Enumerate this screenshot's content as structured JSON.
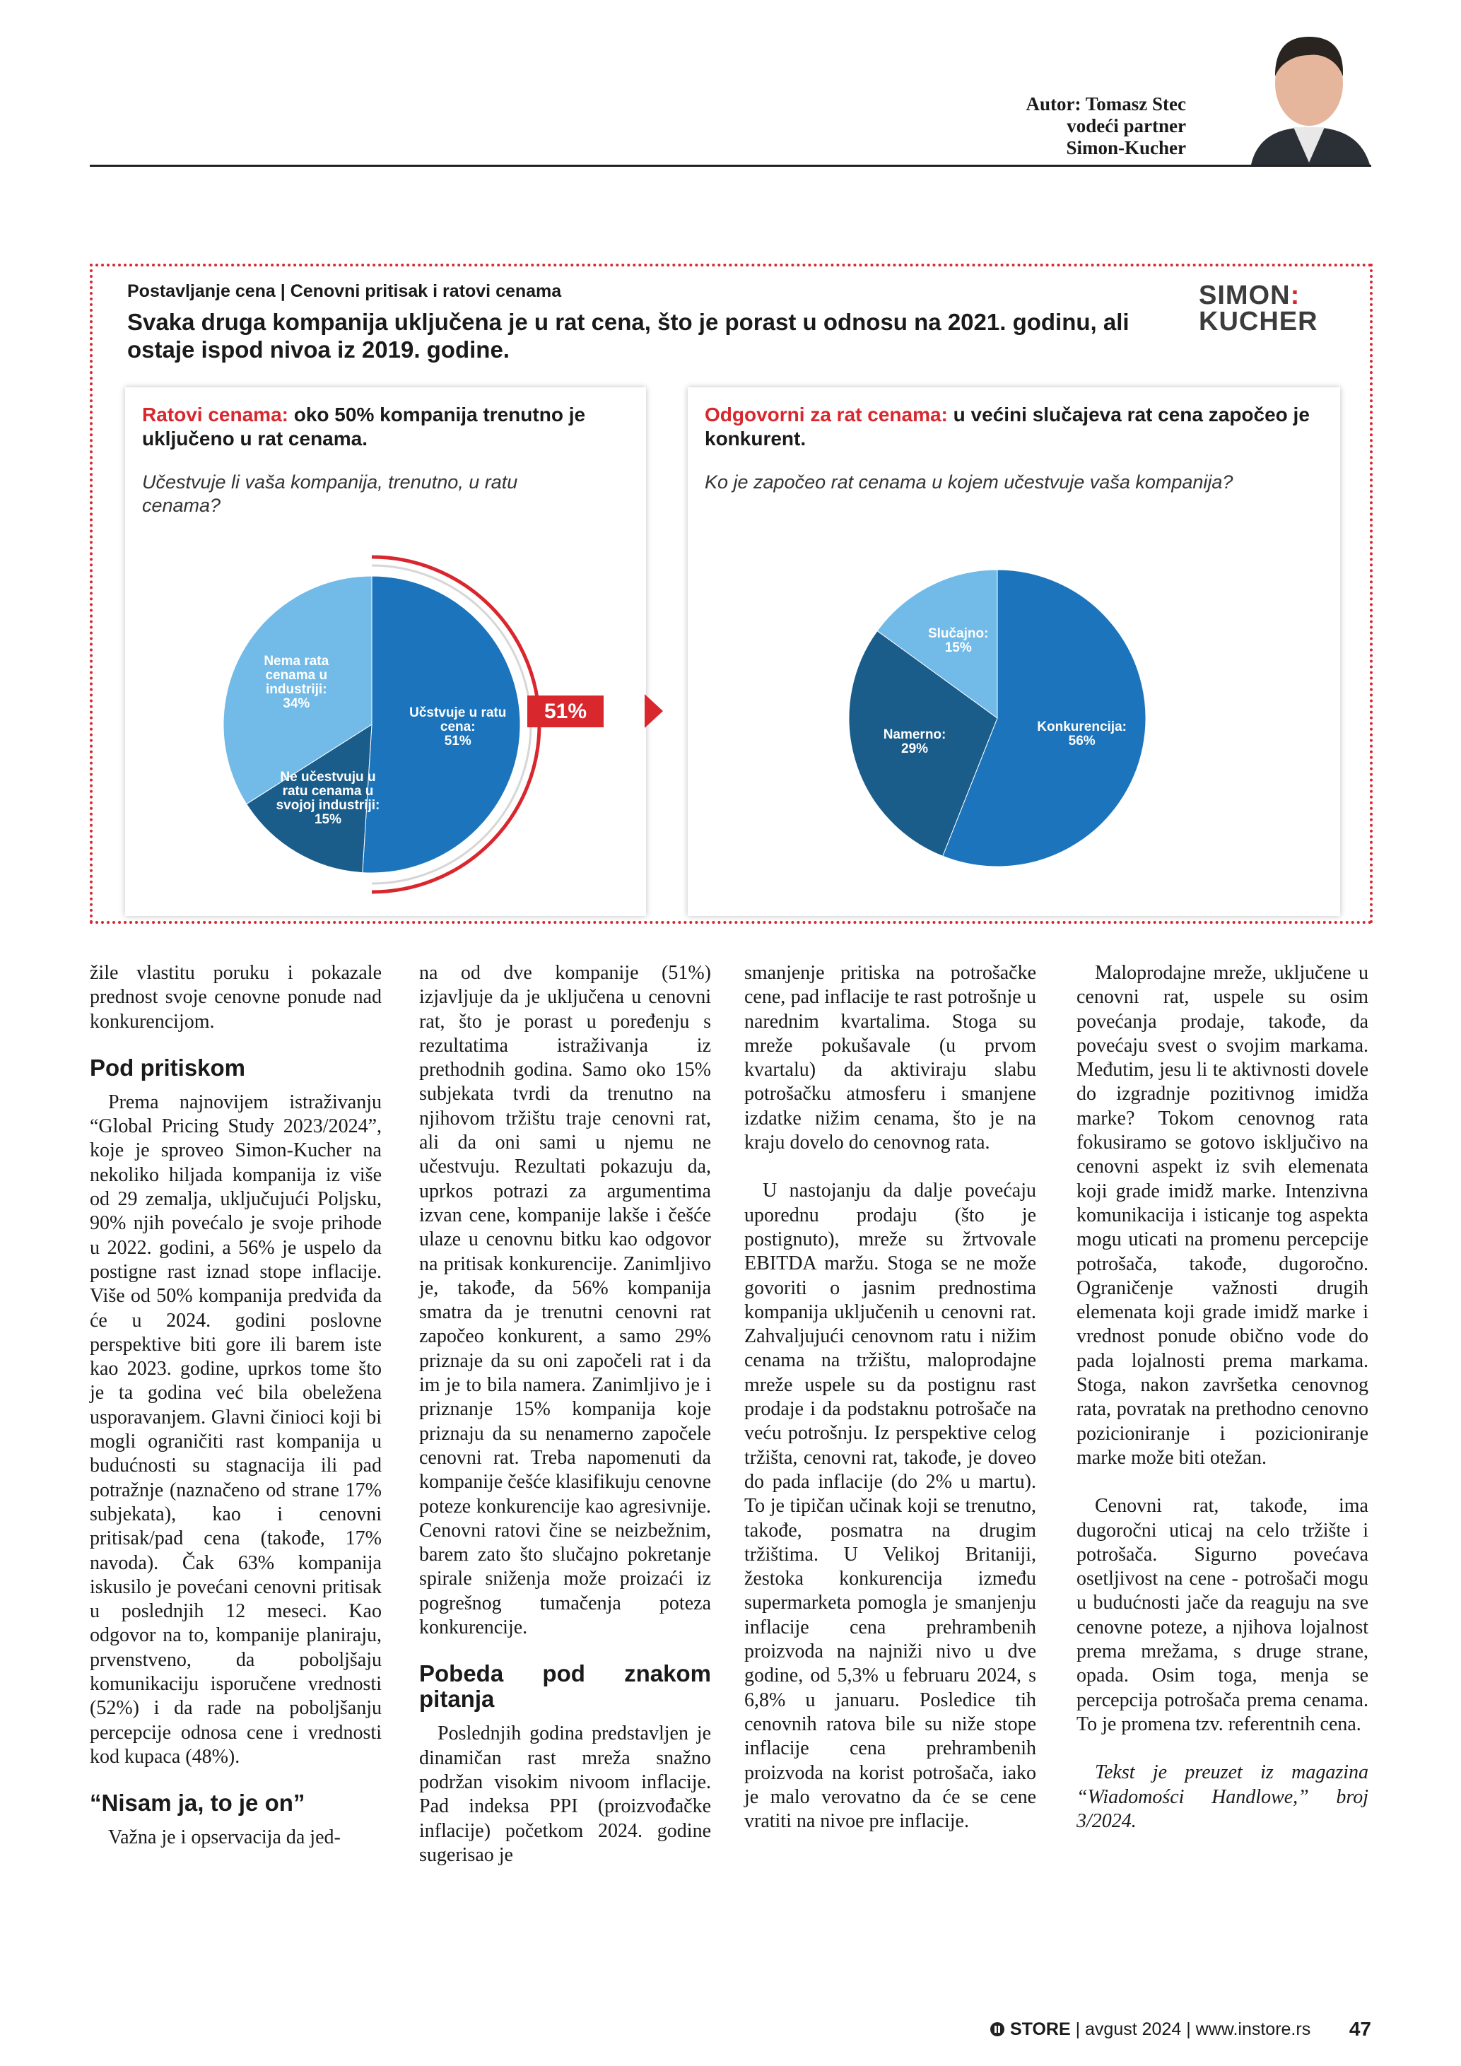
{
  "header": {
    "author_lines": [
      "Autor: Tomasz Stec",
      "vodeći partner",
      "Simon-Kucher"
    ]
  },
  "infographic": {
    "kicker": "Postavljanje cena | Cenovni pritisak i ratovi cenama",
    "headline": "Svaka druga kompanija uključena je u rat cena, što je porast u odnosu na 2021. godinu, ali ostaje ispod nivoa iz 2019. godine.",
    "logo": [
      "SIMON",
      "KUCHER"
    ],
    "panels": [
      {
        "lead_highlight": "Ratovi cenama:",
        "lead": "oko 50% kompanija trenutno je uključeno u rat cenama.",
        "question": "Učestvuje li vaša kompanija, trenutno, u ratu cenama?"
      },
      {
        "lead_highlight": "Odgovorni za rat cenama:",
        "lead": "u većini slučajeva rat cena započeo je konkurent.",
        "question": "Ko je započeo rat cenama u kojem učestvuje vaša kompanija?"
      }
    ]
  },
  "chart_data": [
    {
      "type": "pie",
      "categories": [
        "Učstvuje u ratu cena:",
        "Ne učestvuju u ratu cenama u svojoj industriji:",
        "Nema rata cenama u industriji:"
      ],
      "values": [
        51,
        15,
        34
      ],
      "value_labels": [
        "51%",
        "15%",
        "34%"
      ],
      "colors": [
        "#1c75bc",
        "#1a5c8a",
        "#72bbe8"
      ]
    },
    {
      "type": "pie",
      "categories": [
        "Konkurencija:",
        "Namerno:",
        "Slučajno:"
      ],
      "values": [
        56,
        29,
        15
      ],
      "value_labels": [
        "56%",
        "29%",
        "15%"
      ],
      "colors": [
        "#1c75bc",
        "#1a5c8a",
        "#72bbe8"
      ]
    }
  ],
  "article": {
    "columns": [
      [
        {
          "kind": "first",
          "text": "žile vlastitu poruku i pokazale prednost svoje cenovne ponude nad konkurencijom."
        },
        {
          "kind": "heading",
          "text": "Pod pritiskom"
        },
        {
          "kind": "p",
          "text": "Prema najnovijem istraživanju “Global Pricing Study 2023/2024”, koje je sproveo Simon-Kucher na nekoliko hiljada kompanija iz više od 29 zemalja, uključujući Poljsku, 90% njih povećalo je svoje prihode u 2022. godini, a 56% je uspelo da postigne rast iznad stope inflacije. Više od 50% kompanija predviđa da će u 2024. godini poslovne perspektive biti gore ili barem iste kao 2023. godine, uprkos tome što je ta godina već bila obeležena usporavanjem. Glavni činioci koji bi mogli ograničiti rast kompanija u budućnosti su stagnacija ili pad potražnje (naznačeno od strane 17% subjekata), kao i cenovni pritisak/pad cena (takođe, 17% navoda). Čak 63% kompanija iskusilo je povećani cenovni pritisak u poslednjih 12 meseci. Kao odgovor na to, kompanije planiraju, prvenstveno, da poboljšaju komunikaciju isporučene vrednosti (52%) i da rade na poboljšanju percepcije odnosa cene i vrednosti kod kupaca (48%)."
        },
        {
          "kind": "heading",
          "text": "“Nisam ja, to je on”"
        },
        {
          "kind": "p",
          "text": "Važna je i opservacija da jed-"
        }
      ],
      [
        {
          "kind": "first",
          "text": "na od dve kompanije (51%) izjavljuje da je uključena u cenovni rat, što je porast u poređenju s rezultatima istraživanja iz prethodnih godina. Samo oko 15% subjekata tvrdi da trenutno na njihovom tržištu traje cenovni rat, ali da oni sami u njemu ne učestvuju. Rezultati pokazuju da, uprkos potrazi za argumentima izvan cene, kompanije lakše i češće ulaze u cenovnu bitku kao odgovor na pritisak konkurencije. Zanimljivo je, takođe, da 56% kompanija smatra da je trenutni cenovni rat započeo konkurent, a samo 29% priznaje da su oni započeli rat i da im je to bila namera. Zanimljivo je i priznanje 15% kompanija koje priznaju da su nenamerno započele cenovni rat. Treba napomenuti da kompanije češće klasifikuju cenovne poteze konkurencije kao agresivnije. Cenovni ratovi čine se neizbežnim, barem zato što slučajno pokretanje spirale sniženja može proizaći iz pogrešnog tumačenja poteza konkurencije."
        },
        {
          "kind": "heading",
          "text": "Pobeda pod znakom pitanja"
        },
        {
          "kind": "p",
          "text": "Poslednjih godina predstavljen je dinamičan rast mreža snažno podržan visokim nivoom inflacije. Pad indeksa PPI (proizvođačke inflacije) početkom 2024. godine sugerisao je"
        }
      ],
      [
        {
          "kind": "first",
          "text": "smanjenje pritiska na potrošačke cene, pad inflacije te rast potrošnje u narednim kvartalima. Stoga su mreže pokušavale (u prvom kvartalu) da aktiviraju slabu potrošačku atmosferu i smanjene izdatke nižim cenama, što je na kraju dovelo do cenovnog rata."
        },
        {
          "kind": "gap",
          "text": "U nastojanju da dalje povećaju uporednu prodaju (što je postignuto), mreže su žrtvovale EBITDA maržu. Stoga se ne može govoriti o jasnim prednostima kompanija uključenih u cenovni rat. Zahvaljujući cenovnom ratu i nižim cenama na tržištu, maloprodajne mreže uspele su da postignu rast prodaje i da podstaknu potrošače na veću potrošnju. Iz perspektive celog tržišta, cenovni rat, takođe, je doveo do pada inflacije (do 2% u martu). To je tipičan učinak koji se trenutno, takođe, posmatra na drugim tržištima. U Velikoj Britaniji, žestoka konkurencija između supermarketa pomogla je smanjenju inflacije cena prehrambenih proizvoda na najniži nivo u dve godine, od 5,3% u februaru 2024, s 6,8% u januaru. Posledice tih cenovnih ratova bile su niže stope inflacije cena prehrambenih proizvoda na korist potrošača, iako je malo verovatno da će se cene vratiti na nivoe pre inflacije."
        }
      ],
      [
        {
          "kind": "p",
          "text": "Maloprodajne mreže, uključene u cenovni rat, uspele su osim povećanja prodaje, takođe, da povećaju svest o svojim markama. Međutim, jesu li te aktivnosti dovele do izgradnje pozitivnog imidža marke? Tokom cenovnog rata fokusiramo se gotovo isključivo na cenovni aspekt iz svih elemenata koji grade imidž marke. Intenzivna komunikacija i isticanje tog aspekta mogu uticati na promenu percepcije potrošača, takođe, dugoročno. Ograničenje važnosti drugih elemenata koji grade imidž marke i vrednost ponude obično vode do pada lojalnosti prema markama. Stoga, nakon završetka cenovnog rata, povratak na prethodno cenovno pozicioniranje i pozicioniranje marke može biti otežan."
        },
        {
          "kind": "gap",
          "text": "Cenovni rat, takođe, ima dugoročni uticaj na celo tržište i potrošača. Sigurno povećava osetljivost na cene - potrošači mogu u budućnosti jače da reaguju na sve cenovne poteze, a njihova lojalnost prema mrežama, s druge strane, opada. Osim toga, menja se percepcija potrošača prema cenama. To je promena tzv. referentnih cena."
        },
        {
          "kind": "note",
          "text": "Tekst je preuzet iz magazina “Wiadomości Handlowe,” broj 3/2024."
        }
      ]
    ]
  },
  "footer": {
    "brand": "STORE",
    "issue": "avgust 2024",
    "website": "www.instore.rs",
    "page_number": "47"
  }
}
